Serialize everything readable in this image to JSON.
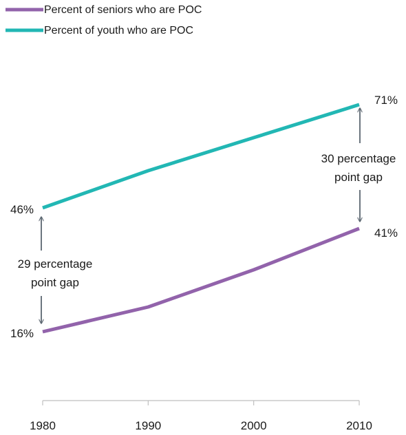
{
  "chart_data": {
    "type": "line",
    "x": [
      1980,
      1990,
      2000,
      2010
    ],
    "categories": [
      "1980",
      "1990",
      "2000",
      "2010"
    ],
    "series": [
      {
        "name": "Percent of seniors who are POC",
        "color": "#9263ab",
        "values": [
          16,
          22,
          31,
          41
        ]
      },
      {
        "name": "Percent of youth who are POC",
        "color": "#22b7b4",
        "values": [
          46,
          55,
          63,
          71
        ]
      }
    ],
    "ylim": [
      0,
      80
    ],
    "grid": false,
    "legend_position": "top-left",
    "value_labels": {
      "youth_start": "46%",
      "seniors_start": "16%",
      "youth_end": "71%",
      "seniors_end": "41%"
    },
    "annotations": {
      "gap_1980": [
        "29 percentage",
        "point gap"
      ],
      "gap_2010": [
        "30 percentage",
        "point gap"
      ]
    },
    "arrow_color": "#5b6670"
  }
}
